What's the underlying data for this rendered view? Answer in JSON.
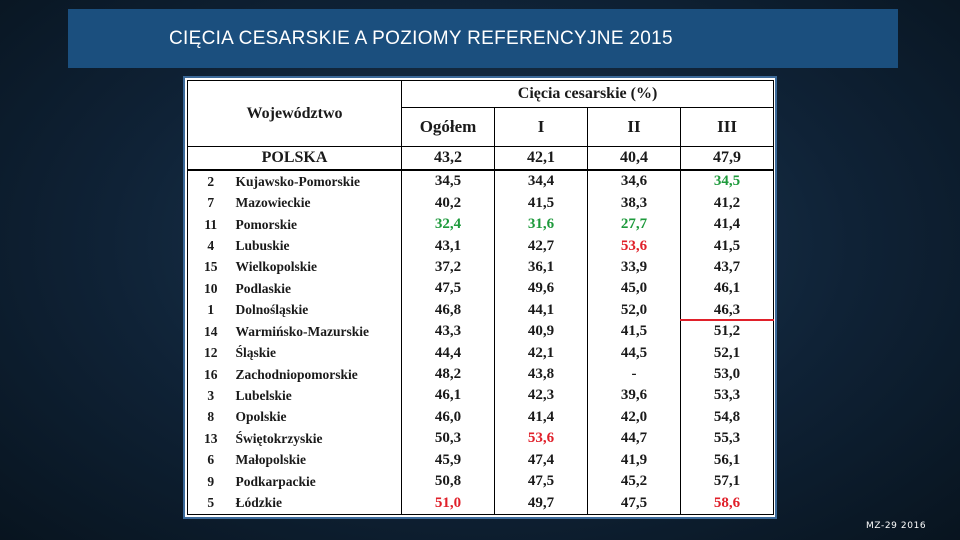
{
  "title": "CIĘCIA CESARSKIE A POZIOMY REFERENCYJNE 2015",
  "footer": "MZ-29 2016",
  "colors": {
    "title_bg": "#1b4f7e",
    "highlight_red": "#e0202a",
    "highlight_green": "#1e9a3c"
  },
  "table": {
    "header_region": "Województwo",
    "header_group": "Cięcia cesarskie (%)",
    "columns": [
      "Ogółem",
      "I",
      "II",
      "III"
    ],
    "total": {
      "name": "POLSKA",
      "values": [
        "43,2",
        "42,1",
        "40,4",
        "47,9"
      ]
    },
    "rows": [
      {
        "nr": "2",
        "name": "Kujawsko-Pomorskie",
        "values": [
          "34,5",
          "34,4",
          "34,6",
          "34,5"
        ],
        "colors": [
          "",
          "",
          "",
          "green"
        ]
      },
      {
        "nr": "7",
        "name": "Mazowieckie",
        "values": [
          "40,2",
          "41,5",
          "38,3",
          "41,2"
        ],
        "colors": [
          "",
          "",
          "",
          ""
        ]
      },
      {
        "nr": "11",
        "name": "Pomorskie",
        "values": [
          "32,4",
          "31,6",
          "27,7",
          "41,4"
        ],
        "colors": [
          "green",
          "green",
          "green",
          ""
        ]
      },
      {
        "nr": "4",
        "name": "Lubuskie",
        "values": [
          "43,1",
          "42,7",
          "53,6",
          "41,5"
        ],
        "colors": [
          "",
          "",
          "red",
          ""
        ]
      },
      {
        "nr": "15",
        "name": "Wielkopolskie",
        "values": [
          "37,2",
          "36,1",
          "33,9",
          "43,7"
        ],
        "colors": [
          "",
          "",
          "",
          ""
        ]
      },
      {
        "nr": "10",
        "name": "Podlaskie",
        "values": [
          "47,5",
          "49,6",
          "45,0",
          "46,1"
        ],
        "colors": [
          "",
          "",
          "",
          ""
        ]
      },
      {
        "nr": "1",
        "name": "Dolnośląskie",
        "values": [
          "46,8",
          "44,1",
          "52,0",
          "46,3"
        ],
        "colors": [
          "",
          "",
          "",
          ""
        ]
      },
      {
        "nr": "14",
        "name": "Warmińsko-Mazurskie",
        "values": [
          "43,3",
          "40,9",
          "41,5",
          "51,2"
        ],
        "colors": [
          "",
          "",
          "",
          ""
        ]
      },
      {
        "nr": "12",
        "name": "Śląskie",
        "values": [
          "44,4",
          "42,1",
          "44,5",
          "52,1"
        ],
        "colors": [
          "",
          "",
          "",
          ""
        ]
      },
      {
        "nr": "16",
        "name": "Zachodniopomorskie",
        "values": [
          "48,2",
          "43,8",
          "-",
          "53,0"
        ],
        "colors": [
          "",
          "",
          "",
          ""
        ]
      },
      {
        "nr": "3",
        "name": "Lubelskie",
        "values": [
          "46,1",
          "42,3",
          "39,6",
          "53,3"
        ],
        "colors": [
          "",
          "",
          "",
          ""
        ]
      },
      {
        "nr": "8",
        "name": "Opolskie",
        "values": [
          "46,0",
          "41,4",
          "42,0",
          "54,8"
        ],
        "colors": [
          "",
          "",
          "",
          ""
        ]
      },
      {
        "nr": "13",
        "name": "Świętokrzyskie",
        "values": [
          "50,3",
          "53,6",
          "44,7",
          "55,3"
        ],
        "colors": [
          "",
          "red",
          "",
          ""
        ]
      },
      {
        "nr": "6",
        "name": "Małopolskie",
        "values": [
          "45,9",
          "47,4",
          "41,9",
          "56,1"
        ],
        "colors": [
          "",
          "",
          "",
          ""
        ]
      },
      {
        "nr": "9",
        "name": "Podkarpackie",
        "values": [
          "50,8",
          "47,5",
          "45,2",
          "57,1"
        ],
        "colors": [
          "",
          "",
          "",
          ""
        ]
      },
      {
        "nr": "5",
        "name": "Łódzkie",
        "values": [
          "51,0",
          "49,7",
          "47,5",
          "58,6"
        ],
        "colors": [
          "red",
          "",
          "",
          "red"
        ]
      }
    ]
  }
}
